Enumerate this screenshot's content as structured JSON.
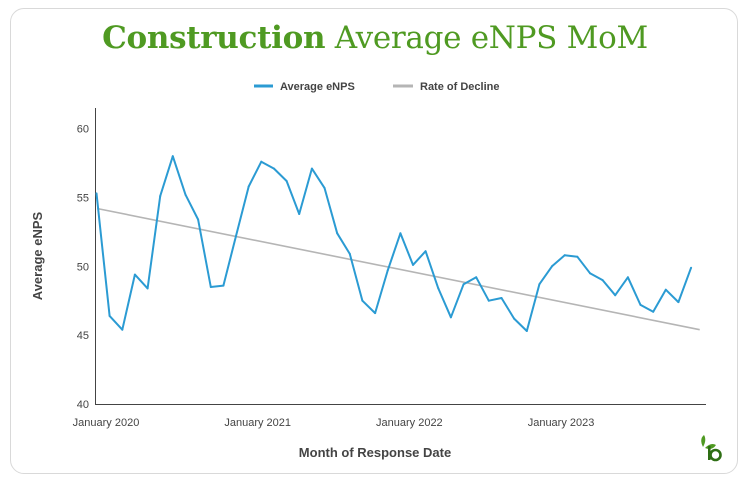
{
  "title": {
    "bold": "Construction",
    "rest": "Average eNPS MoM"
  },
  "colors": {
    "enps": "#2b9bd3",
    "trend": "#b5b5b5",
    "brand": "#4f9a22"
  },
  "logo_icon": "leaf-b-icon",
  "chart_data": {
    "type": "line",
    "xlabel": "Month of Response Date",
    "ylabel": "Average eNPS",
    "ylim": [
      40,
      61.5
    ],
    "yticks": [
      40,
      45,
      50,
      55,
      60
    ],
    "x": [
      "2020-01",
      "2020-02",
      "2020-03",
      "2020-04",
      "2020-05",
      "2020-06",
      "2020-07",
      "2020-08",
      "2020-09",
      "2020-10",
      "2020-11",
      "2020-12",
      "2021-01",
      "2021-02",
      "2021-03",
      "2021-04",
      "2021-05",
      "2021-06",
      "2021-07",
      "2021-08",
      "2021-09",
      "2021-10",
      "2021-11",
      "2021-12",
      "2022-01",
      "2022-02",
      "2022-03",
      "2022-04",
      "2022-05",
      "2022-06",
      "2022-07",
      "2022-08",
      "2022-09",
      "2022-10",
      "2022-11",
      "2022-12",
      "2023-01",
      "2023-02",
      "2023-03",
      "2023-04",
      "2023-05",
      "2023-06",
      "2023-07",
      "2023-08",
      "2023-09",
      "2023-10",
      "2023-11",
      "2023-12"
    ],
    "xticks": [
      {
        "x": "2020-01",
        "label": "January 2020"
      },
      {
        "x": "2021-01",
        "label": "January 2021"
      },
      {
        "x": "2022-01",
        "label": "January 2022"
      },
      {
        "x": "2023-01",
        "label": "January 2023"
      }
    ],
    "series": [
      {
        "name": "Average eNPS",
        "values": [
          55.3,
          46.4,
          45.4,
          49.4,
          48.4,
          55.1,
          58.0,
          55.2,
          53.4,
          48.5,
          48.6,
          52.2,
          55.8,
          57.6,
          57.1,
          56.2,
          53.8,
          57.1,
          55.7,
          52.4,
          50.9,
          47.5,
          46.6,
          49.7,
          52.4,
          50.1,
          51.1,
          48.4,
          46.3,
          48.7,
          49.2,
          47.5,
          47.7,
          46.2,
          45.3,
          48.7,
          50.0,
          50.8,
          50.7,
          49.5,
          49.0,
          47.9,
          49.2,
          47.2,
          46.7,
          48.3,
          47.4,
          49.9
        ]
      },
      {
        "name": "Rate of Decline",
        "values": [
          54.2,
          45.4
        ],
        "x": [
          "2020-01",
          "2024-01"
        ]
      }
    ],
    "legend": "top-center",
    "grid": false
  }
}
